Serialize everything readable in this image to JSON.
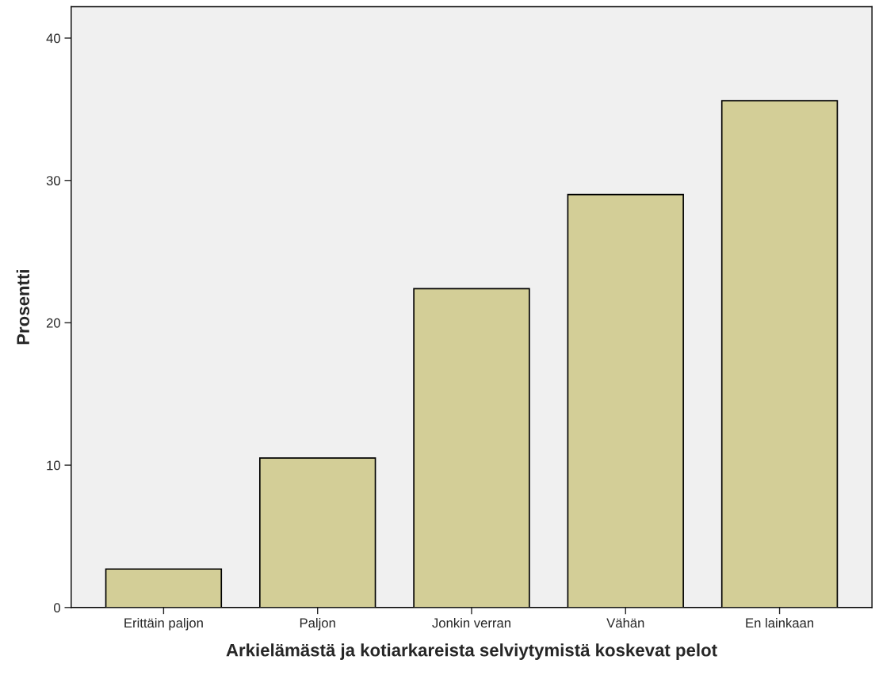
{
  "chart_data": {
    "type": "bar",
    "xlabel": "Arkielämästä ja kotiarkareista selviytymistä koskevat pelot",
    "ylabel": "Prosentti",
    "categories": [
      "Erittäin paljon",
      "Paljon",
      "Jonkin verran",
      "Vähän",
      "En lainkaan"
    ],
    "values": [
      2.7,
      10.5,
      22.4,
      29.0,
      35.6
    ],
    "color": "#d3ce97",
    "ylim": [
      0,
      42.2
    ],
    "yticks": [
      0,
      10,
      20,
      30,
      40
    ],
    "grid": false,
    "legend": false
  }
}
